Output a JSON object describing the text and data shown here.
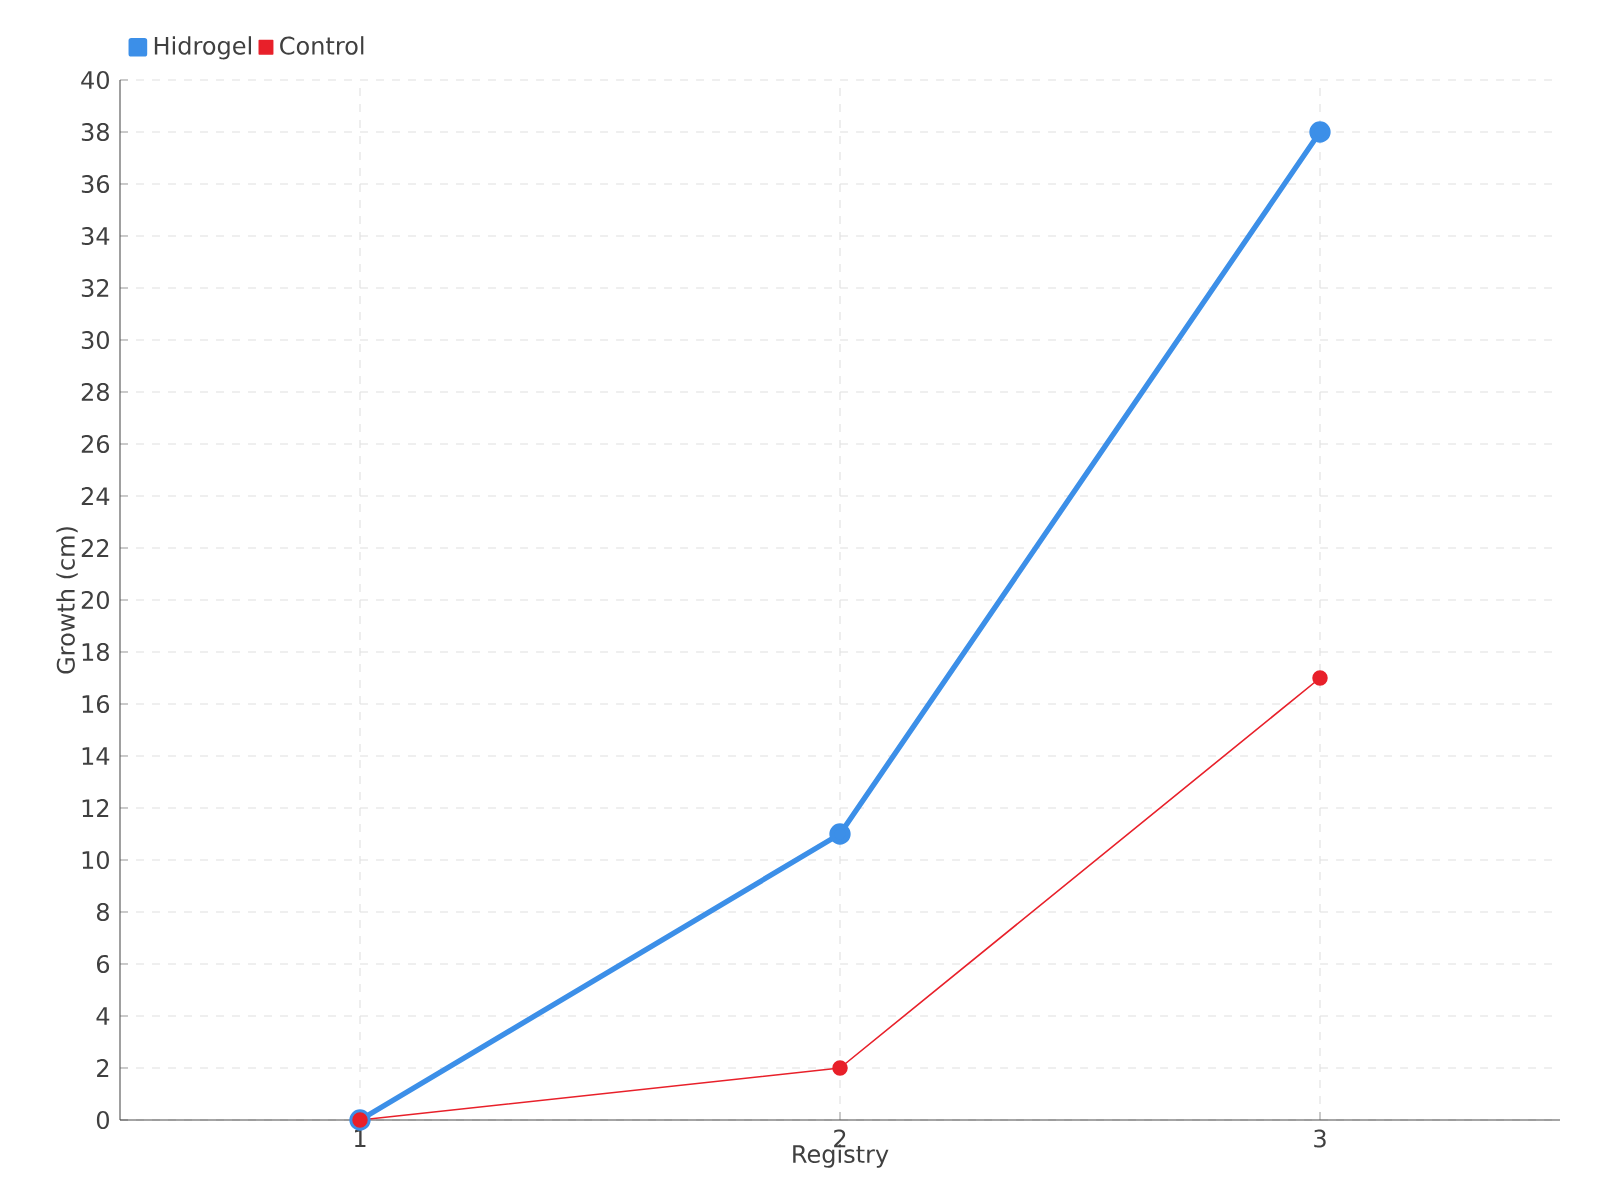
{
  "chart_data": {
    "type": "line",
    "xlabel": "Registry",
    "ylabel": "Growth (cm)",
    "categories": [
      "1",
      "2",
      "3"
    ],
    "series": [
      {
        "name": "Hidrogel",
        "color": "#3c8fe8",
        "values": [
          0,
          11,
          38
        ]
      },
      {
        "name": "Control",
        "color": "#e8202a",
        "values": [
          0,
          2,
          17
        ]
      }
    ],
    "ylim": [
      0,
      40
    ],
    "yticks": [
      0,
      2,
      4,
      6,
      8,
      10,
      12,
      14,
      16,
      18,
      20,
      22,
      24,
      26,
      28,
      30,
      32,
      34,
      36,
      38,
      40
    ],
    "grid": true,
    "legend": "top left",
    "marker": "circle",
    "line_style": "solid"
  }
}
